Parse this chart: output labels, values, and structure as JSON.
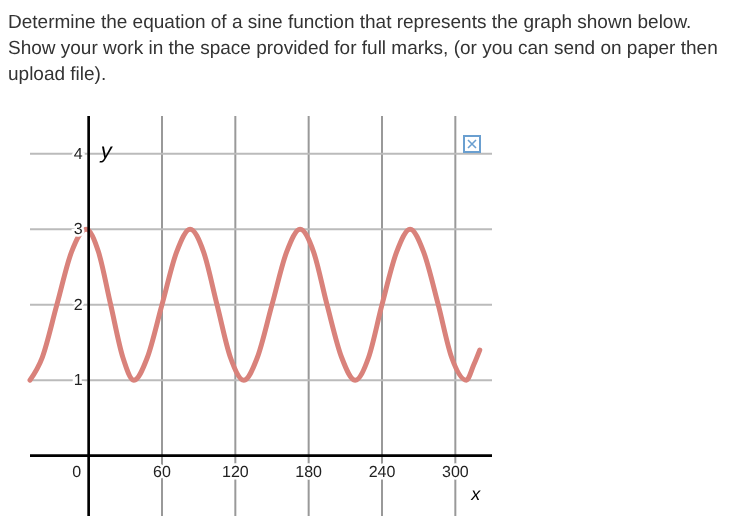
{
  "chart_data": {
    "type": "line",
    "title": "Determine the equation of a sine function that represents the graph shown below. Show your work in the space provided for full marks, (or you can send on paper then upload file).",
    "xlabel": "x",
    "ylabel": "y",
    "x": [
      -48,
      -38,
      -26,
      -14,
      -2,
      8,
      18,
      28,
      37,
      48,
      60,
      72,
      83,
      94,
      105,
      116,
      127,
      138,
      150,
      162,
      173,
      184,
      195,
      207,
      218,
      229,
      240,
      252,
      263,
      274,
      286,
      297,
      309,
      315,
      320
    ],
    "series": [
      {
        "color": "#d9827b",
        "values": [
          1,
          1.3,
          2,
          2.7,
          3,
          2.7,
          2,
          1.3,
          1,
          1.3,
          2,
          2.7,
          3,
          2.7,
          2,
          1.3,
          1,
          1.3,
          2,
          2.7,
          3,
          2.7,
          2,
          1.3,
          1,
          1.3,
          2,
          2.7,
          3,
          2.7,
          2,
          1.3,
          1,
          1.2,
          1.4
        ]
      }
    ],
    "xlim": [
      -48,
      330
    ],
    "ylim": [
      -0.8,
      4.5
    ],
    "xticks": [
      0,
      60,
      120,
      180,
      240,
      300
    ],
    "yticks": [
      1,
      2,
      3,
      4
    ],
    "grid": true,
    "marker": "none",
    "line_style": "solid"
  }
}
